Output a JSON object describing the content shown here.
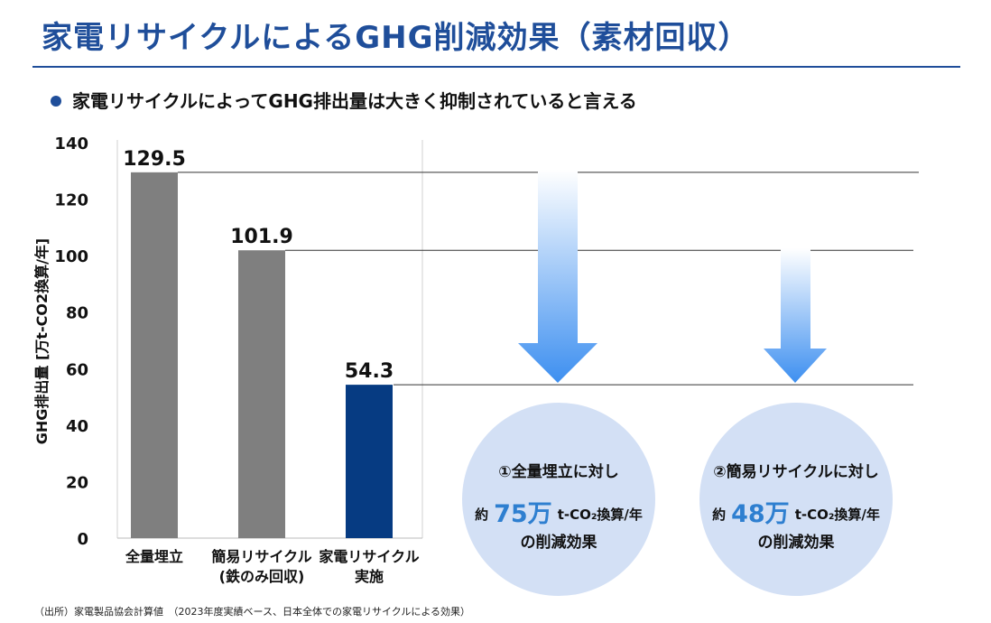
{
  "title": "家電リサイクルによるGHG削減効果（素材回収）",
  "bullet": "家電リサイクルによってGHG排出量は大きく抑制されていると言える",
  "chart_data": {
    "type": "bar",
    "ylabel": "GHG排出量 [万t-CO2換算/年]",
    "ylim": [
      0,
      140
    ],
    "yticks": [
      0,
      20,
      40,
      60,
      80,
      100,
      120,
      140
    ],
    "categories": [
      {
        "line1": "全量埋立",
        "line2": ""
      },
      {
        "line1": "簡易リサイクル",
        "line2": "(鉄のみ回収)"
      },
      {
        "line1": "家電リサイクル",
        "line2": "実施"
      }
    ],
    "values": [
      129.5,
      101.9,
      54.3
    ],
    "value_labels": [
      "129.5",
      "101.9",
      "54.3"
    ],
    "bar_colors": [
      "#7f7f7f",
      "#7f7f7f",
      "#063b82"
    ]
  },
  "callouts": [
    {
      "line1": "①全量埋立に対し",
      "prefix": "約",
      "value": "75万",
      "unit": "t-CO₂換算/年",
      "line3": "の削減効果"
    },
    {
      "line1": "②簡易リサイクルに対し",
      "prefix": "約",
      "value": "48万",
      "unit": "t-CO₂換算/年",
      "line3": "の削減効果"
    }
  ],
  "source": "（出所）家電製品協会計算値　（2023年度実績ベース、日本全体での家電リサイクルによる効果）"
}
